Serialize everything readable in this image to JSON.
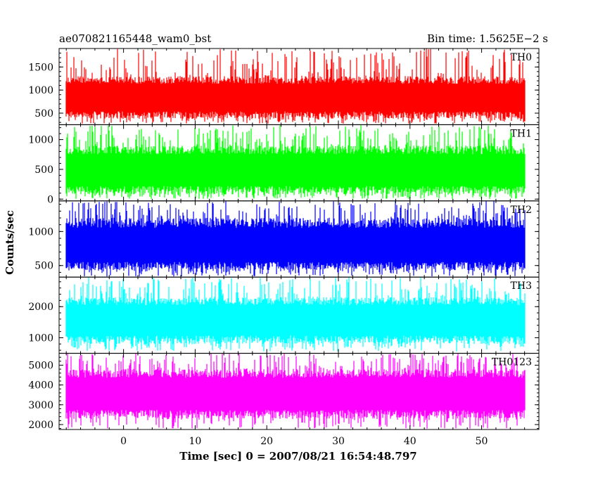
{
  "chart_data": {
    "type": "line",
    "title_left": "ae070821165448_wam0_bst",
    "title_right": "Bin time: 1.5625E−2 s",
    "xlabel": "Time [sec] 0 = 2007/08/21 16:54:48.797",
    "ylabel": "Counts/sec",
    "xlim": [
      -9,
      58
    ],
    "x_data_range": [
      -8,
      56
    ],
    "bin_time": 0.015625,
    "x_ticks": [
      "0",
      "10",
      "20",
      "30",
      "40",
      "50"
    ],
    "x_tick_values": [
      0,
      10,
      20,
      30,
      40,
      50
    ],
    "grid": false,
    "panels": [
      {
        "label": "TH0",
        "color": "#ff0000",
        "ylim": [
          250,
          1900
        ],
        "y_ticks": [
          "500",
          "1000",
          "1500"
        ],
        "y_tick_values": [
          500,
          1000,
          1500
        ],
        "mean": 830,
        "low_typical": 380,
        "low_extreme": 270,
        "high_typical": 1300,
        "high_extreme": 1900
      },
      {
        "label": "TH1",
        "color": "#00ff00",
        "ylim": [
          -30,
          1250
        ],
        "y_ticks": [
          "0",
          "500",
          "1000"
        ],
        "y_tick_values": [
          0,
          500,
          1000
        ],
        "mean": 480,
        "low_typical": 80,
        "low_extreme": 5,
        "high_typical": 900,
        "high_extreme": 1250
      },
      {
        "label": "TH2",
        "color": "#0000ff",
        "ylim": [
          330,
          1450
        ],
        "y_ticks": [
          "500",
          "1000"
        ],
        "y_tick_values": [
          500,
          1000
        ],
        "mean": 780,
        "low_typical": 430,
        "low_extreme": 340,
        "high_typical": 1200,
        "high_extreme": 1450
      },
      {
        "label": "TH3",
        "color": "#00ffff",
        "ylim": [
          500,
          2950
        ],
        "y_ticks": [
          "1000",
          "2000"
        ],
        "y_tick_values": [
          1000,
          2000
        ],
        "mean": 1580,
        "low_typical": 800,
        "low_extreme": 560,
        "high_typical": 2300,
        "high_extreme": 2950
      },
      {
        "label": "TH0123",
        "color": "#ff00ff",
        "ylim": [
          1750,
          5600
        ],
        "y_ticks": [
          "2000",
          "3000",
          "4000",
          "5000"
        ],
        "y_tick_values": [
          2000,
          3000,
          4000,
          5000
        ],
        "mean": 3550,
        "low_typical": 2300,
        "low_extreme": 1800,
        "high_typical": 4800,
        "high_extreme": 5600
      }
    ]
  }
}
